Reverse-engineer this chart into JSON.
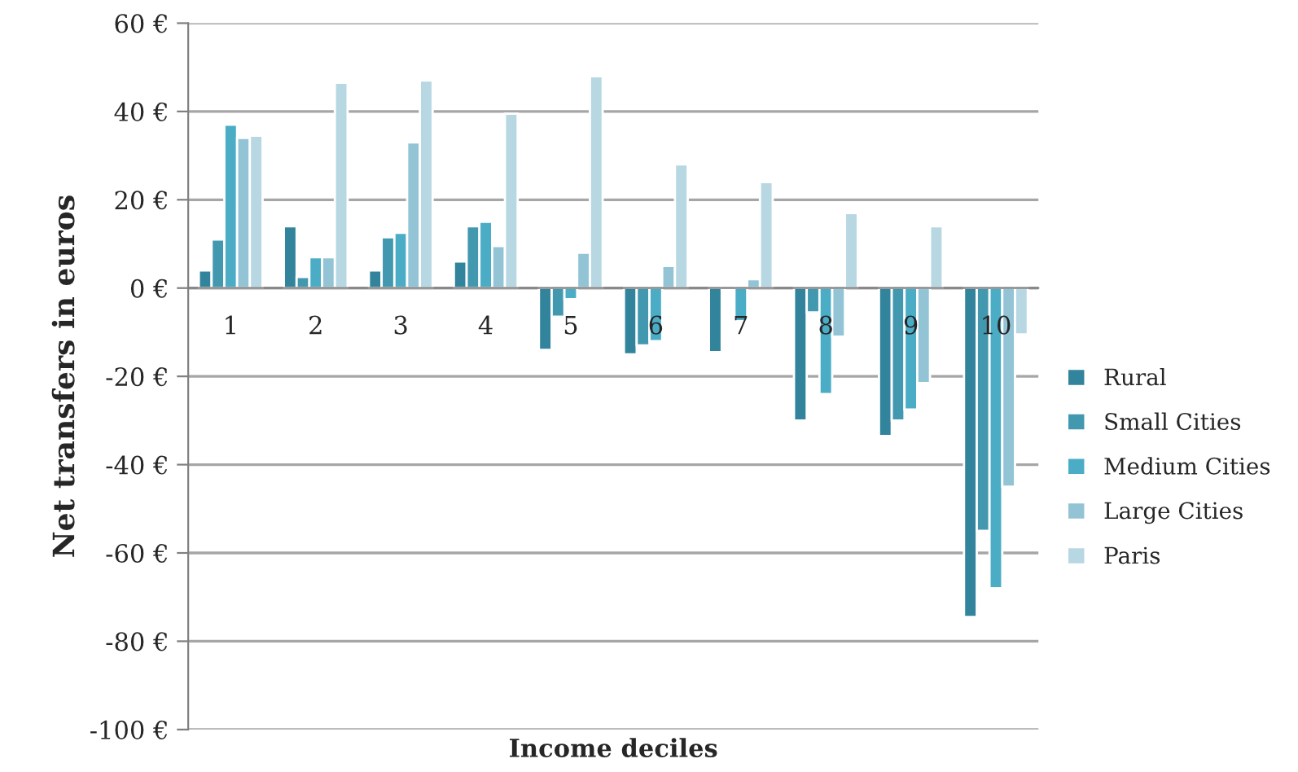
{
  "chart_data": {
    "type": "bar",
    "xlabel": "Income deciles",
    "ylabel": "Net transfers in euros",
    "categories": [
      "1",
      "2",
      "3",
      "4",
      "5",
      "6",
      "7",
      "8",
      "9",
      "10"
    ],
    "series": [
      {
        "name": "Rural",
        "color": "#31849b",
        "values": [
          4,
          14,
          4,
          6,
          -14,
          -15,
          -14.5,
          -30,
          -33.5,
          -74.5
        ]
      },
      {
        "name": "Small Cities",
        "color": "#4198af",
        "values": [
          11,
          2.5,
          11.5,
          14,
          -6.5,
          -13,
          -0.5,
          -5.5,
          -30,
          -55
        ]
      },
      {
        "name": "Medium Cities",
        "color": "#4bacc6",
        "values": [
          37,
          7,
          12.5,
          15,
          -2.5,
          -12,
          -7.5,
          -24,
          -27.5,
          -68
        ]
      },
      {
        "name": "Large Cities",
        "color": "#92c4d6",
        "values": [
          34,
          7,
          33,
          9.5,
          8,
          5,
          2,
          -11,
          -21.5,
          -45
        ]
      },
      {
        "name": "Paris",
        "color": "#b7d7e3",
        "values": [
          34.5,
          46.5,
          47,
          39.5,
          48,
          28,
          24,
          17,
          14,
          -10.5
        ]
      }
    ],
    "ylim": [
      -100,
      60
    ],
    "yticks": [
      {
        "value": -100,
        "label": "-100 €"
      },
      {
        "value": -80,
        "label": "-80 €"
      },
      {
        "value": -60,
        "label": "-60 €"
      },
      {
        "value": -40,
        "label": "-40 €"
      },
      {
        "value": -20,
        "label": "-20 €"
      },
      {
        "value": 0,
        "label": "0 €"
      },
      {
        "value": 20,
        "label": "20 €"
      },
      {
        "value": 40,
        "label": "40 €"
      },
      {
        "value": 60,
        "label": "60 €"
      }
    ],
    "grid": "y",
    "legend": "right"
  }
}
